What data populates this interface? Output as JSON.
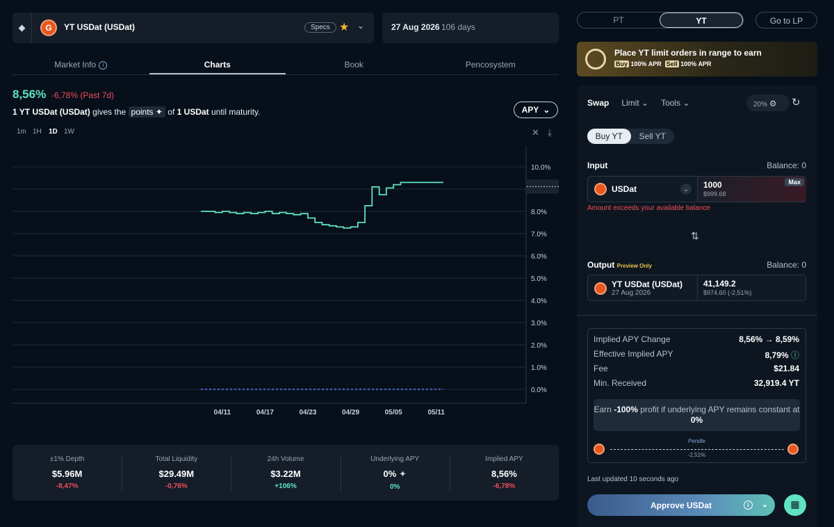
{
  "header": {
    "token_name": "YT USDat (USDat)",
    "specs": "Specs",
    "maturity_date": "27 Aug 2026",
    "days_left": "106 days"
  },
  "tabs": [
    "Market Info",
    "Charts",
    "Book",
    "Pencosystem"
  ],
  "summary": {
    "apy": "8,56%",
    "change": "-6,78% (Past 7d)",
    "gives_pre": "1 YT USDat (USDat)",
    "gives_mid": "gives the",
    "points": "points",
    "gives_of": "of",
    "gives_post": "1 USDat",
    "gives_end": "until maturity.",
    "metric_select": "APY"
  },
  "timeframes": [
    "1m",
    "1H",
    "1D",
    "1W"
  ],
  "chart_data": {
    "type": "line",
    "x": [
      "04/08",
      "04/09",
      "04/10",
      "04/11",
      "04/12",
      "04/13",
      "04/14",
      "04/15",
      "04/16",
      "04/17",
      "04/18",
      "04/19",
      "04/20",
      "04/21",
      "04/22",
      "04/23",
      "04/24",
      "04/25",
      "04/26",
      "04/27",
      "04/28",
      "04/29",
      "04/30",
      "05/01",
      "05/02",
      "05/03",
      "05/04",
      "05/05",
      "05/06",
      "05/07",
      "05/08",
      "05/09",
      "05/10",
      "05/11",
      "05/12"
    ],
    "series": [
      {
        "values": [
          8.0,
          8.0,
          8.0,
          7.95,
          8.0,
          7.95,
          7.9,
          7.95,
          7.9,
          7.95,
          8.0,
          7.9,
          7.95,
          7.9,
          7.85,
          7.9,
          7.7,
          7.5,
          7.4,
          7.35,
          7.3,
          7.25,
          7.3,
          7.5,
          8.25,
          9.1,
          8.75,
          9.05,
          9.2,
          9.3,
          9.3,
          9.3,
          9.3,
          9.3,
          9.3
        ],
        "color": "#5fe3c0"
      },
      {
        "values": [
          0,
          0,
          0,
          0,
          0,
          0,
          0,
          0,
          0,
          0,
          0,
          0,
          0,
          0,
          0,
          0,
          0,
          0,
          0,
          0,
          0,
          0,
          0,
          0,
          0,
          0,
          0,
          0,
          0,
          0,
          0,
          0,
          0,
          0,
          0
        ],
        "color": "#4a6cf0"
      }
    ],
    "x_ticks": [
      "04/11",
      "04/17",
      "04/23",
      "04/29",
      "05/05",
      "05/11"
    ],
    "y_ticks": [
      "0.0%",
      "1.0%",
      "2.0%",
      "3.0%",
      "4.0%",
      "5.0%",
      "6.0%",
      "7.0%",
      "8.0%",
      "9.0%",
      "10.0%"
    ],
    "ylim": [
      0,
      11
    ],
    "grid": true
  },
  "stats": [
    {
      "label": "±1% Depth",
      "value": "$5.96M",
      "change": "-8,47%",
      "dir": "down"
    },
    {
      "label": "Total Liquidity",
      "value": "$29.49M",
      "change": "-0,76%",
      "dir": "down"
    },
    {
      "label": "24h Volume",
      "value": "$3.22M",
      "change": "+106%",
      "dir": "up"
    },
    {
      "label": "Underlying APY",
      "value": "0%",
      "change": "0%",
      "dir": "up"
    },
    {
      "label": "Implied APY",
      "value": "8,56%",
      "change": "-6,78%",
      "dir": "down"
    }
  ],
  "right": {
    "toggle": [
      "PT",
      "YT"
    ],
    "go_lp": "Go to LP",
    "promo_title": "Place YT limit orders in range to earn",
    "promo_buy": "Buy",
    "promo_buy_apr": "100% APR",
    "promo_sell": "Sell",
    "promo_sell_apr": "100% APR",
    "swap_tabs": [
      "Swap",
      "Limit",
      "Tools"
    ],
    "slippage": "20%",
    "buy_sell": [
      "Buy YT",
      "Sell YT"
    ],
    "input_label": "Input",
    "input_balance": "Balance: 0",
    "input_token": "USDat",
    "input_amount": "1000",
    "input_usd": "$999.68",
    "max": "Max",
    "error": "Amount exceeds your available balance",
    "output_label": "Output",
    "output_preview": "Preview Only",
    "output_balance": "Balance: 0",
    "output_token": "YT USDat (USDat)",
    "output_date": "27 Aug 2026",
    "output_amount": "41,149.2",
    "output_usd": "$974.60 (-2,51%)",
    "details": [
      {
        "label": "Implied APY Change",
        "value": "8,56% → 8,59%"
      },
      {
        "label": "Effective Implied APY",
        "value": "8,79%"
      },
      {
        "label": "Fee",
        "value": "$21.84"
      },
      {
        "label": "Min. Received",
        "value": "32,919.4 YT"
      }
    ],
    "earn_pre": "Earn",
    "earn_bold": "-100%",
    "earn_post": "profit if underlying APY remains constant at",
    "earn_val": "0%",
    "route_via": "Pendle",
    "route_pct": "-2,51%",
    "last_updated": "Last updated 10 seconds ago",
    "approve": "Approve USDat"
  }
}
